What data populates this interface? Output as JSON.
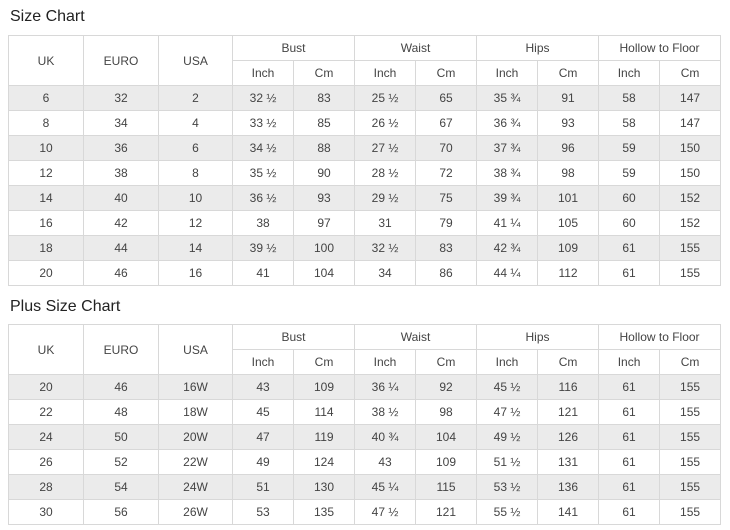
{
  "colors": {
    "table_border": "#d8d8d8",
    "row_stripe": "#ebebeb",
    "cell_text": "#444444",
    "title_text": "#222222",
    "background": "#ffffff"
  },
  "tables": [
    {
      "title": "Size Chart",
      "group_headers": [
        "UK",
        "EURO",
        "USA",
        "Bust",
        "Waist",
        "Hips",
        "Hollow to Floor"
      ],
      "sub_headers": [
        "Inch",
        "Cm",
        "Inch",
        "Cm",
        "Inch",
        "Cm",
        "Inch",
        "Cm"
      ],
      "rows": [
        [
          "6",
          "32",
          "2",
          "32 ½",
          "83",
          "25 ½",
          "65",
          "35 ¾",
          "91",
          "58",
          "147"
        ],
        [
          "8",
          "34",
          "4",
          "33 ½",
          "85",
          "26 ½",
          "67",
          "36 ¾",
          "93",
          "58",
          "147"
        ],
        [
          "10",
          "36",
          "6",
          "34 ½",
          "88",
          "27 ½",
          "70",
          "37 ¾",
          "96",
          "59",
          "150"
        ],
        [
          "12",
          "38",
          "8",
          "35 ½",
          "90",
          "28 ½",
          "72",
          "38 ¾",
          "98",
          "59",
          "150"
        ],
        [
          "14",
          "40",
          "10",
          "36 ½",
          "93",
          "29 ½",
          "75",
          "39 ¾",
          "101",
          "60",
          "152"
        ],
        [
          "16",
          "42",
          "12",
          "38",
          "97",
          "31",
          "79",
          "41 ¼",
          "105",
          "60",
          "152"
        ],
        [
          "18",
          "44",
          "14",
          "39 ½",
          "100",
          "32 ½",
          "83",
          "42 ¾",
          "109",
          "61",
          "155"
        ],
        [
          "20",
          "46",
          "16",
          "41",
          "104",
          "34",
          "86",
          "44 ¼",
          "112",
          "61",
          "155"
        ]
      ]
    },
    {
      "title": "Plus Size Chart",
      "group_headers": [
        "UK",
        "EURO",
        "USA",
        "Bust",
        "Waist",
        "Hips",
        "Hollow to Floor"
      ],
      "sub_headers": [
        "Inch",
        "Cm",
        "Inch",
        "Cm",
        "Inch",
        "Cm",
        "Inch",
        "Cm"
      ],
      "rows": [
        [
          "20",
          "46",
          "16W",
          "43",
          "109",
          "36 ¼",
          "92",
          "45 ½",
          "116",
          "61",
          "155"
        ],
        [
          "22",
          "48",
          "18W",
          "45",
          "114",
          "38 ½",
          "98",
          "47 ½",
          "121",
          "61",
          "155"
        ],
        [
          "24",
          "50",
          "20W",
          "47",
          "119",
          "40 ¾",
          "104",
          "49 ½",
          "126",
          "61",
          "155"
        ],
        [
          "26",
          "52",
          "22W",
          "49",
          "124",
          "43",
          "109",
          "51 ½",
          "131",
          "61",
          "155"
        ],
        [
          "28",
          "54",
          "24W",
          "51",
          "130",
          "45 ¼",
          "115",
          "53 ½",
          "136",
          "61",
          "155"
        ],
        [
          "30",
          "56",
          "26W",
          "53",
          "135",
          "47 ½",
          "121",
          "55 ½",
          "141",
          "61",
          "155"
        ]
      ]
    }
  ]
}
